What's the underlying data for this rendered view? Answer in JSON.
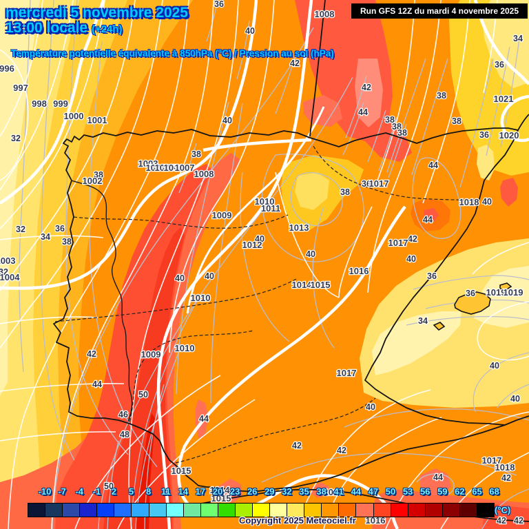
{
  "header": {
    "date_line": "mercredi 5 novembre 2025",
    "time_line": "13:00 locale",
    "offset": "(+24h)",
    "subtitle": "Température potentielle équivalente à 850hPa (°C) / Pression au sol (hPa)",
    "run_info": "Run GFS 12Z du mardi 4 novembre 2025"
  },
  "footer": {
    "copyright": "Copyright 2025 Meteociel.fr",
    "unit": "(°C)"
  },
  "colors": {
    "title_text": "#00ccff",
    "title_outline": "#0026b3",
    "base_orange": "#ff9104",
    "red_band": "#ff4f33",
    "pale_yellow": "#fff2a6"
  },
  "scale": {
    "values": [
      "-10",
      "-7",
      "-4",
      "-1",
      "2",
      "5",
      "8",
      "11",
      "14",
      "17",
      "20",
      "23",
      "26",
      "29",
      "32",
      "35",
      "38",
      "41",
      "44",
      "47",
      "50",
      "53",
      "56",
      "59",
      "62",
      "65",
      "68"
    ],
    "colors": [
      "#0b1535",
      "#17375e",
      "#2c49a8",
      "#1a24cc",
      "#0540f8",
      "#1e6eff",
      "#30aaff",
      "#46c8f2",
      "#72ffff",
      "#70e8a0",
      "#70ff70",
      "#33dd00",
      "#aaee00",
      "#ffff00",
      "#ffff9e",
      "#ffe95c",
      "#fdc500",
      "#ff9800",
      "#ff6a00",
      "#ff7256",
      "#ff4422",
      "#ff0000",
      "#d40000",
      "#b00000",
      "#8b0000",
      "#5e0000",
      "#000000"
    ]
  },
  "map_labels": {
    "pressure": [
      [
        "996",
        10,
        100
      ],
      [
        "997",
        30,
        128
      ],
      [
        "998",
        57,
        151
      ],
      [
        "999",
        88,
        151
      ],
      [
        "1000",
        107,
        169
      ],
      [
        "1001",
        141,
        175
      ],
      [
        "1002",
        134,
        263
      ],
      [
        "1003",
        215,
        238
      ],
      [
        "1004",
        226,
        244
      ],
      [
        "1005",
        239,
        244
      ],
      [
        "1006",
        252,
        244
      ],
      [
        "1007",
        268,
        244
      ],
      [
        "1008",
        296,
        253
      ],
      [
        "1008",
        471,
        21
      ],
      [
        "1009",
        322,
        313
      ],
      [
        "1010",
        384,
        293
      ],
      [
        "1011",
        393,
        303
      ],
      [
        "1012",
        366,
        356
      ],
      [
        "1013",
        434,
        331
      ],
      [
        "1014",
        438,
        414
      ],
      [
        "1015",
        465,
        414
      ],
      [
        "1016",
        521,
        394
      ],
      [
        "1017",
        550,
        267
      ],
      [
        "1017",
        578,
        353
      ],
      [
        "1018",
        681,
        294
      ],
      [
        "1020",
        739,
        197
      ],
      [
        "1021",
        731,
        144
      ],
      [
        "1019",
        720,
        425
      ],
      [
        "1019",
        745,
        425
      ],
      [
        "1010",
        291,
        433
      ],
      [
        "1009",
        219,
        515
      ],
      [
        "1010",
        268,
        506
      ],
      [
        "1015",
        263,
        684
      ],
      [
        "1017",
        503,
        542
      ],
      [
        "1017",
        714,
        669
      ],
      [
        "1018",
        733,
        679
      ],
      [
        "1015",
        484,
        715
      ],
      [
        "1014",
        319,
        712
      ],
      [
        "1015",
        321,
        724
      ],
      [
        "1016",
        545,
        756
      ],
      [
        "1003",
        8,
        379
      ],
      [
        "1004",
        14,
        403
      ]
    ],
    "theta": [
      [
        "32",
        23,
        201
      ],
      [
        "32",
        30,
        333
      ],
      [
        "34",
        66,
        344
      ],
      [
        "36",
        87,
        332
      ],
      [
        "38",
        97,
        351
      ],
      [
        "38",
        143,
        254
      ],
      [
        "32",
        5,
        395
      ],
      [
        "38",
        285,
        224
      ],
      [
        "40",
        330,
        175
      ],
      [
        "36",
        318,
        6
      ],
      [
        "40",
        363,
        45
      ],
      [
        "42",
        428,
        92
      ],
      [
        "42",
        532,
        127
      ],
      [
        "44",
        527,
        163
      ],
      [
        "38",
        566,
        174
      ],
      [
        "38",
        576,
        184
      ],
      [
        "38",
        584,
        193
      ],
      [
        "38",
        641,
        139
      ],
      [
        "38",
        663,
        176
      ],
      [
        "36",
        703,
        196
      ],
      [
        "34",
        752,
        56
      ],
      [
        "36",
        725,
        94
      ],
      [
        "36",
        532,
        267
      ],
      [
        "38",
        501,
        279
      ],
      [
        "40",
        377,
        347
      ],
      [
        "40",
        451,
        369
      ],
      [
        "40",
        261,
        404
      ],
      [
        "40",
        304,
        401
      ],
      [
        "42",
        133,
        514
      ],
      [
        "44",
        141,
        558
      ],
      [
        "50",
        208,
        573
      ],
      [
        "46",
        179,
        602
      ],
      [
        "48",
        181,
        631
      ],
      [
        "50",
        158,
        706
      ],
      [
        "44",
        296,
        608
      ],
      [
        "42",
        431,
        647
      ],
      [
        "44",
        629,
        240
      ],
      [
        "44",
        621,
        319
      ],
      [
        "42",
        599,
        347
      ],
      [
        "40",
        597,
        376
      ],
      [
        "36",
        627,
        401
      ],
      [
        "36",
        683,
        426
      ],
      [
        "34",
        614,
        466
      ],
      [
        "40",
        718,
        531
      ],
      [
        "40",
        748,
        579
      ],
      [
        "40",
        538,
        591
      ],
      [
        "42",
        496,
        654
      ],
      [
        "44",
        636,
        693
      ],
      [
        "42",
        735,
        694
      ],
      [
        "40",
        707,
        293
      ],
      [
        "42",
        728,
        756
      ],
      [
        "42",
        753,
        756
      ]
    ]
  }
}
